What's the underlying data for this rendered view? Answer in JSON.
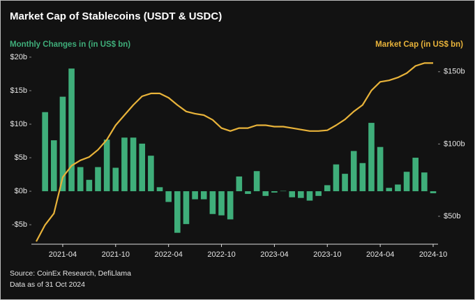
{
  "chart_data": {
    "type": "bar-line",
    "title": "Market Cap of Stablecoins (USDT & USDC)",
    "source": "Source: CoinEx Research, DefiLlama",
    "note": "Data as of 31 Oct 2024",
    "categories": [
      null,
      null,
      null,
      "2021-04",
      null,
      null,
      null,
      null,
      null,
      "2021-10",
      null,
      null,
      null,
      null,
      null,
      "2022-04",
      null,
      null,
      null,
      null,
      null,
      "2022-10",
      null,
      null,
      null,
      null,
      null,
      "2023-04",
      null,
      null,
      null,
      null,
      null,
      "2023-10",
      null,
      null,
      null,
      null,
      null,
      "2024-04",
      null,
      null,
      null,
      null,
      null,
      "2024-10"
    ],
    "series": [
      {
        "name": "Monthly Changes in (in US$ bn)",
        "color": "#3fae7a",
        "axis": "y",
        "values": [
          null,
          11.8,
          7.6,
          14.1,
          18.3,
          3.6,
          1.7,
          3.6,
          7.7,
          3.5,
          8.0,
          8.0,
          7.1,
          5.3,
          0.6,
          -1.6,
          -6.2,
          -4.9,
          -1.2,
          -1.2,
          -3.4,
          -3.6,
          -4.2,
          2.2,
          -0.4,
          3.0,
          -0.7,
          -0.2,
          0.05,
          -0.9,
          -1.0,
          -1.4,
          -0.7,
          0.9,
          4.0,
          2.6,
          6.0,
          4.2,
          10.2,
          6.6,
          0.5,
          1.0,
          2.9,
          5.0,
          2.8,
          -0.3
        ]
      },
      {
        "name": "Market Cap (in US$ bn)",
        "color": "#e8b33a",
        "axis": "y2",
        "values": [
          32.6,
          44,
          52,
          77,
          85,
          88.7,
          91,
          96,
          103,
          113,
          120,
          127,
          133,
          135,
          135,
          132,
          127,
          122.5,
          121,
          120,
          116.7,
          111,
          109,
          111,
          111,
          113,
          113,
          112,
          112,
          111,
          110,
          109,
          109,
          109.5,
          113,
          117,
          122.5,
          127,
          137,
          143,
          144,
          146,
          149,
          154,
          156,
          156
        ]
      }
    ],
    "ylim": [
      -7.9,
      20.2
    ],
    "yticks": [
      {
        "value": -5,
        "label": "-$5b"
      },
      {
        "value": 0,
        "label": "$0b"
      },
      {
        "value": 5,
        "label": "$5b"
      },
      {
        "value": 10,
        "label": "$10b"
      },
      {
        "value": 15,
        "label": "$15b"
      },
      {
        "value": 20,
        "label": "$20b"
      }
    ],
    "y2lim": [
      30.7,
      161
    ],
    "y2ticks": [
      {
        "value": 50,
        "label": "$50b"
      },
      {
        "value": 100,
        "label": "$100b"
      },
      {
        "value": 150,
        "label": "$150b"
      }
    ],
    "grid": false
  }
}
